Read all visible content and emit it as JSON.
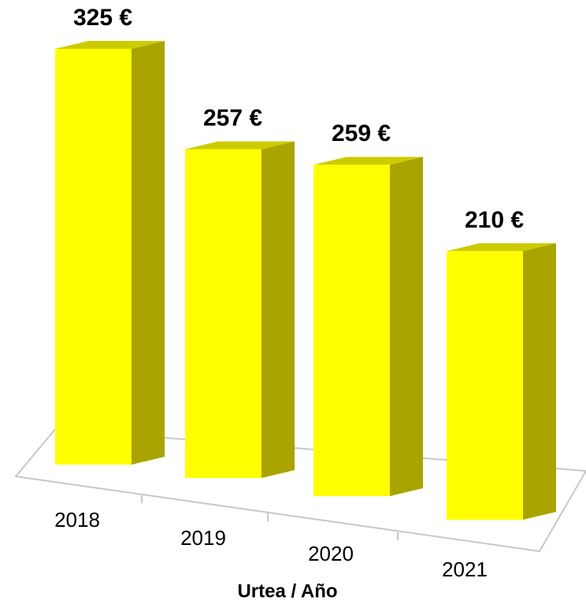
{
  "chart_data": {
    "type": "bar3d",
    "x_label": "Urtea / Año",
    "categories": [
      "2018",
      "2019",
      "2020",
      "2021"
    ],
    "values": [
      325,
      257,
      259,
      210
    ],
    "value_labels": [
      "325 €",
      "257 €",
      "259 €",
      "210 €"
    ],
    "color": "#ffff00"
  }
}
